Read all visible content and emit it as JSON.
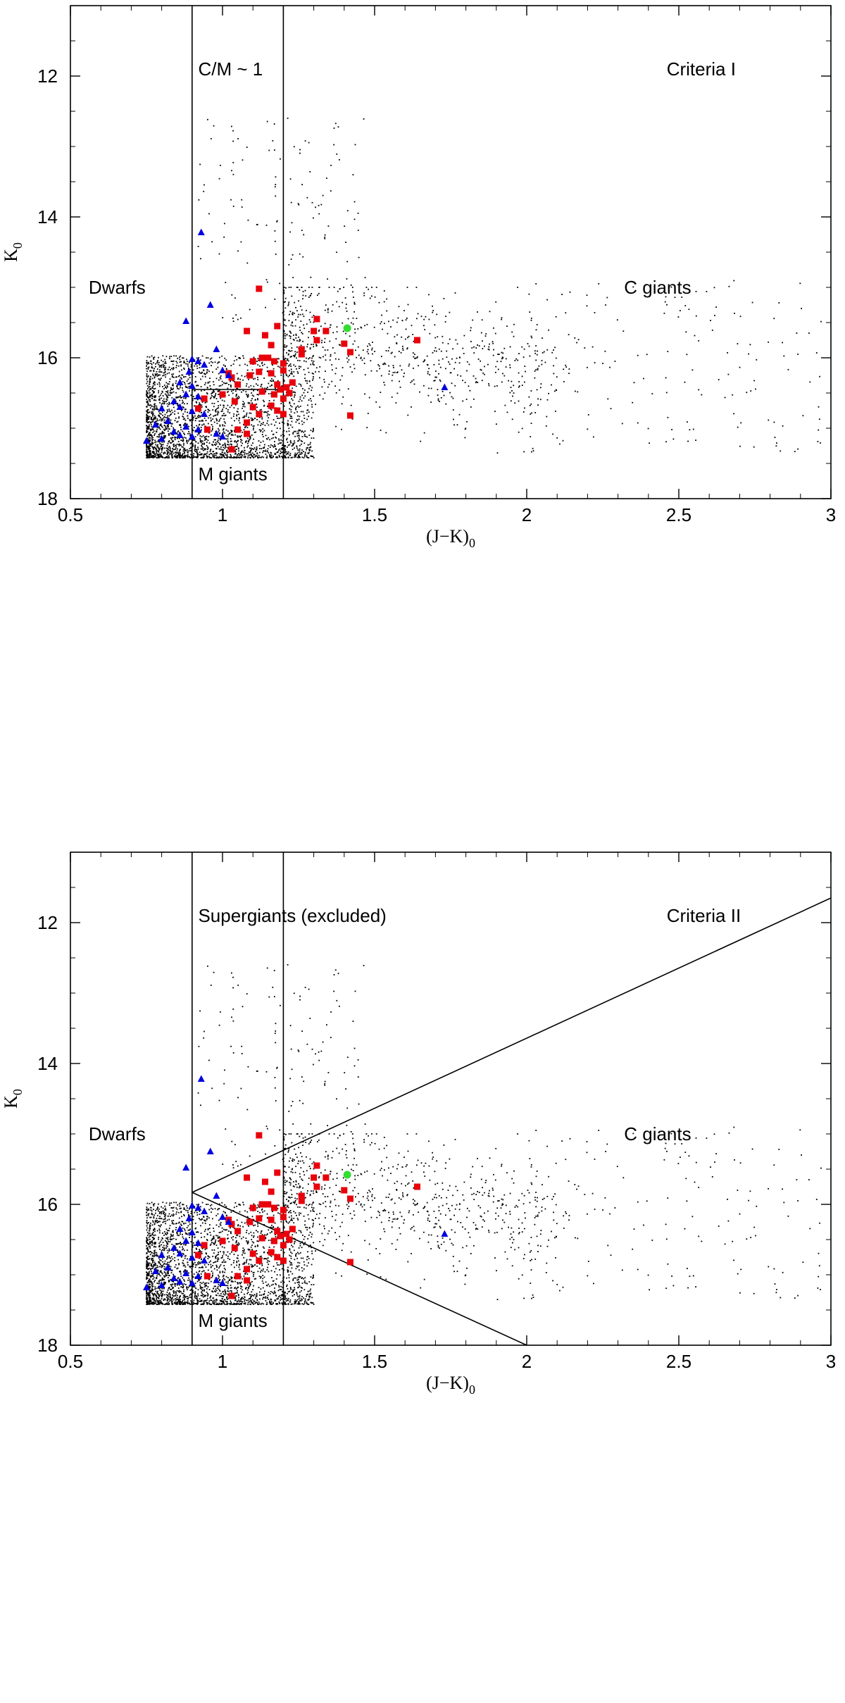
{
  "chart_data": [
    {
      "type": "scatter",
      "panel": "top",
      "xlabel": "(J−K)",
      "xlabel_sub": "0",
      "ylabel": "K",
      "ylabel_sub": "0",
      "xlim": [
        0.5,
        3.0
      ],
      "ylim": [
        18.0,
        11.0
      ],
      "xticks": [
        "0.5",
        "1",
        "1.5",
        "2",
        "2.5",
        "3"
      ],
      "yticks": [
        "12",
        "14",
        "16",
        "18"
      ],
      "annotations": [
        "C/M ~ 1",
        "Criteria I",
        "Dwarfs",
        "C giants",
        "M giants"
      ],
      "boundaries": [
        {
          "type": "vline",
          "x": 0.9,
          "y": [
            11.0,
            18.0
          ]
        },
        {
          "type": "vline",
          "x": 1.2,
          "y": [
            11.0,
            18.0
          ]
        },
        {
          "type": "segment",
          "x": [
            0.9,
            1.2
          ],
          "y": [
            16.45,
            16.45
          ]
        }
      ],
      "series": [
        {
          "marker": "dot",
          "color": "#000000",
          "distribution": "dense field population, K0 between ~12.5 and 17.4, (J-K)0 between 0.75 and 3.0, concentrated at (J-K)0 0.75-1.2, K0 16-17.4"
        },
        {
          "marker": "square",
          "color": "#e8000b",
          "points": [
            [
              1.12,
              15.02
            ],
            [
              1.08,
              15.62
            ],
            [
              1.14,
              15.68
            ],
            [
              1.18,
              15.55
            ],
            [
              1.16,
              15.82
            ],
            [
              1.31,
              15.45
            ],
            [
              1.34,
              15.62
            ],
            [
              1.3,
              15.62
            ],
            [
              1.31,
              15.75
            ],
            [
              1.26,
              15.88
            ],
            [
              1.26,
              15.95
            ],
            [
              1.4,
              15.8
            ],
            [
              1.42,
              15.92
            ],
            [
              1.64,
              15.75
            ],
            [
              1.13,
              16.0
            ],
            [
              1.15,
              16.0
            ],
            [
              1.17,
              16.05
            ],
            [
              1.2,
              16.08
            ],
            [
              1.1,
              16.05
            ],
            [
              1.09,
              16.25
            ],
            [
              1.12,
              16.2
            ],
            [
              1.16,
              16.22
            ],
            [
              1.2,
              16.18
            ],
            [
              1.03,
              16.28
            ],
            [
              1.02,
              16.22
            ],
            [
              1.05,
              16.38
            ],
            [
              1.18,
              16.38
            ],
            [
              1.19,
              16.45
            ],
            [
              1.21,
              16.42
            ],
            [
              1.23,
              16.35
            ],
            [
              1.13,
              16.48
            ],
            [
              1.17,
              16.52
            ],
            [
              1.2,
              16.58
            ],
            [
              1.22,
              16.5
            ],
            [
              1.0,
              16.52
            ],
            [
              0.94,
              16.58
            ],
            [
              1.04,
              16.62
            ],
            [
              1.1,
              16.7
            ],
            [
              1.16,
              16.68
            ],
            [
              1.18,
              16.75
            ],
            [
              1.2,
              16.8
            ],
            [
              1.12,
              16.8
            ],
            [
              1.42,
              16.82
            ],
            [
              1.08,
              16.92
            ],
            [
              0.95,
              17.02
            ],
            [
              1.05,
              17.02
            ],
            [
              1.08,
              17.08
            ],
            [
              1.03,
              17.3
            ],
            [
              0.92,
              16.72
            ]
          ]
        },
        {
          "marker": "triangle",
          "color": "#0000e0",
          "points": [
            [
              0.93,
              14.22
            ],
            [
              0.96,
              15.25
            ],
            [
              0.88,
              15.48
            ],
            [
              0.9,
              16.02
            ],
            [
              0.92,
              16.05
            ],
            [
              0.94,
              16.1
            ],
            [
              0.98,
              15.88
            ],
            [
              1.0,
              16.18
            ],
            [
              1.02,
              16.25
            ],
            [
              0.89,
              16.2
            ],
            [
              0.86,
              16.35
            ],
            [
              0.9,
              16.4
            ],
            [
              0.88,
              16.52
            ],
            [
              0.92,
              16.55
            ],
            [
              0.84,
              16.62
            ],
            [
              0.8,
              16.72
            ],
            [
              0.86,
              16.7
            ],
            [
              0.9,
              16.76
            ],
            [
              0.94,
              16.8
            ],
            [
              0.82,
              16.9
            ],
            [
              0.78,
              16.95
            ],
            [
              0.88,
              16.98
            ],
            [
              0.84,
              17.05
            ],
            [
              0.86,
              17.1
            ],
            [
              0.9,
              17.12
            ],
            [
              0.8,
              17.15
            ],
            [
              0.75,
              17.18
            ],
            [
              0.92,
              17.02
            ],
            [
              0.98,
              17.08
            ],
            [
              1.0,
              17.12
            ],
            [
              1.73,
              16.42
            ]
          ]
        },
        {
          "marker": "circle",
          "color": "#33dd33",
          "points": [
            [
              1.41,
              15.58
            ]
          ]
        }
      ]
    },
    {
      "type": "scatter",
      "panel": "bottom",
      "xlabel": "(J−K)",
      "xlabel_sub": "0",
      "ylabel": "K",
      "ylabel_sub": "0",
      "xlim": [
        0.5,
        3.0
      ],
      "ylim": [
        18.0,
        11.0
      ],
      "xticks": [
        "0.5",
        "1",
        "1.5",
        "2",
        "2.5",
        "3"
      ],
      "yticks": [
        "12",
        "14",
        "16",
        "18"
      ],
      "annotations": [
        "Supergiants (excluded)",
        "Criteria II",
        "Dwarfs",
        "C giants",
        "M giants"
      ],
      "boundaries": [
        {
          "type": "vline",
          "x": 0.9,
          "y": [
            11.0,
            18.0
          ]
        },
        {
          "type": "vline",
          "x": 1.2,
          "y": [
            11.0,
            18.0
          ]
        },
        {
          "type": "segment",
          "x": [
            0.9,
            3.0
          ],
          "y": [
            15.83,
            11.65
          ]
        },
        {
          "type": "segment",
          "x": [
            0.9,
            2.0
          ],
          "y": [
            15.83,
            18.0
          ]
        }
      ],
      "series": [
        {
          "marker": "dot",
          "color": "#000000",
          "distribution": "same field population as top panel"
        },
        {
          "marker": "square",
          "color": "#e8000b",
          "points": "same as top panel"
        },
        {
          "marker": "triangle",
          "color": "#0000e0",
          "points": "same as top panel"
        },
        {
          "marker": "circle",
          "color": "#33dd33",
          "points": [
            [
              1.41,
              15.58
            ]
          ]
        }
      ]
    }
  ]
}
